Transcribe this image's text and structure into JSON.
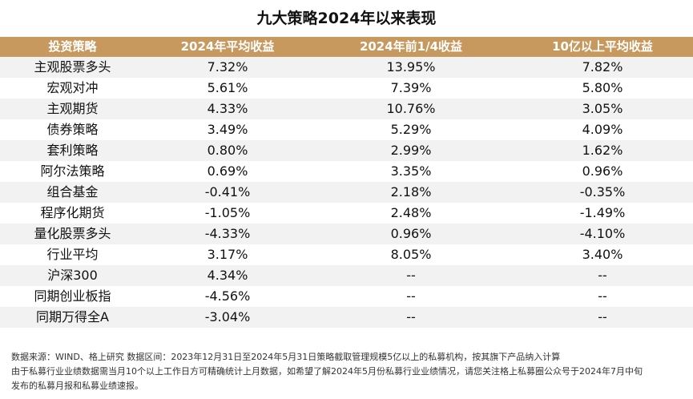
{
  "title": "九大策略2024年以来表现",
  "table": {
    "headers": [
      "投资策略",
      "2024年平均收益",
      "2024年前1/4收益",
      "10亿以上平均收益"
    ],
    "rows": [
      [
        "主观股票多头",
        "7.32%",
        "13.95%",
        "7.82%"
      ],
      [
        "宏观对冲",
        "5.61%",
        "7.39%",
        "5.80%"
      ],
      [
        "主观期货",
        "4.33%",
        "10.76%",
        "3.05%"
      ],
      [
        "债券策略",
        "3.49%",
        "5.29%",
        "4.09%"
      ],
      [
        "套利策略",
        "0.80%",
        "2.99%",
        "1.62%"
      ],
      [
        "阿尔法策略",
        "0.69%",
        "3.35%",
        "0.96%"
      ],
      [
        "组合基金",
        "-0.41%",
        "2.18%",
        "-0.35%"
      ],
      [
        "程序化期货",
        "-1.05%",
        "2.48%",
        "-1.49%"
      ],
      [
        "量化股票多头",
        "-4.33%",
        "0.96%",
        "-4.10%"
      ],
      [
        "行业平均",
        "3.17%",
        "8.05%",
        "3.40%"
      ],
      [
        "沪深300",
        "4.34%",
        "--",
        "--"
      ],
      [
        "同期创业板指",
        "-4.56%",
        "--",
        "--"
      ],
      [
        "同期万得全A",
        "-3.04%",
        "--",
        "--"
      ]
    ]
  },
  "notes": [
    "数据来源：WIND、格上研究 数据区间：2023年12月31日至2024年5月31日策略截取管理规模5亿以上的私募机构，按其旗下产品纳入计算",
    "由于私募行业业绩数据需当月10个以上工作日方可精确统计上月数据，如希望了解2024年5月份私募行业业绩情况，请您关注格上私募圈公众号于2024年7月中旬",
    "发布的私募月报和私募业绩速报。"
  ],
  "colors": {
    "header_bg": "#c8995f",
    "header_text": "#ffffff",
    "row_alt_bg": "#f2f2f2"
  }
}
